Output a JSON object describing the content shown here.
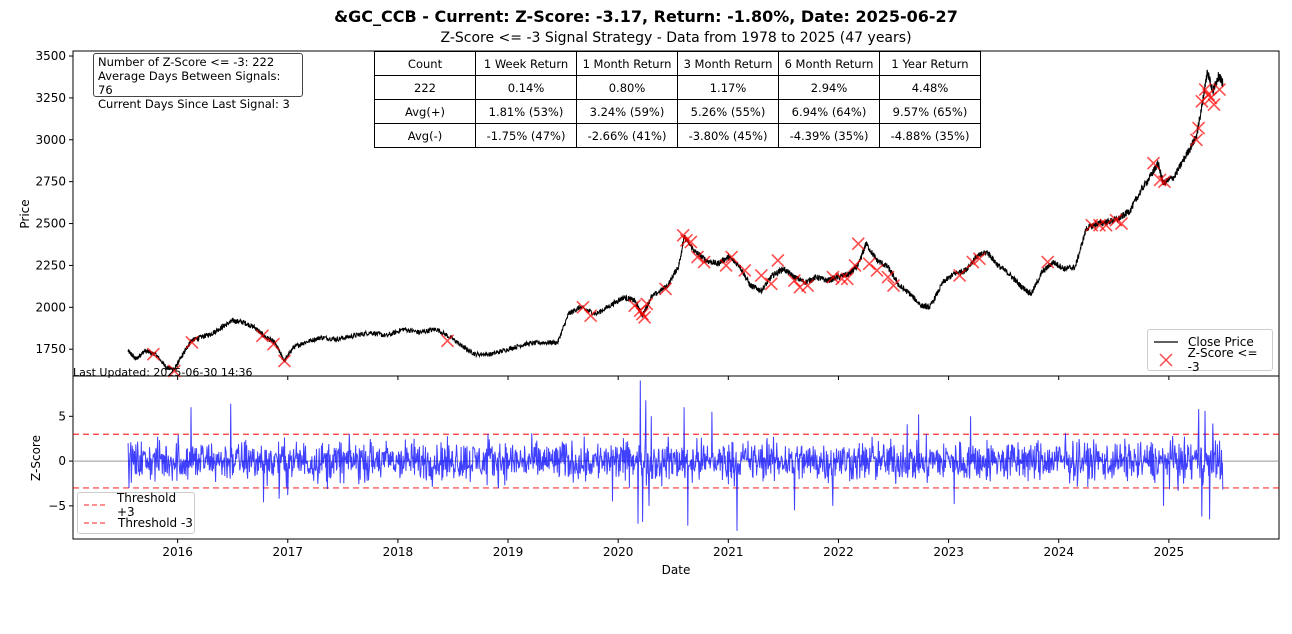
{
  "title": "&GC_CCB - Current: Z-Score: -3.17, Return: -1.80%, Date: 2025-06-27",
  "subtitle": "Z-Score <= -3 Signal Strategy - Data from 1978 to 2025 (47 years)",
  "stats_box": {
    "line1": "Number of Z-Score <= -3: 222",
    "line2": "Average Days Between Signals: 76",
    "line3": "Current Days Since Last Signal: 3"
  },
  "returns_table": {
    "header": [
      "Count",
      "1 Week Return",
      "1 Month Return",
      "3 Month Return",
      "6 Month Return",
      "1 Year Return"
    ],
    "rows": [
      [
        "222",
        "0.14%",
        "0.80%",
        "1.17%",
        "2.94%",
        "4.48%"
      ],
      [
        "Avg(+)",
        "1.81% (53%)",
        "3.24% (59%)",
        "5.26% (55%)",
        "6.94% (64%)",
        "9.57% (65%)"
      ],
      [
        "Avg(-)",
        "-1.75% (47%)",
        "-2.66% (41%)",
        "-3.80% (45%)",
        "-4.39% (35%)",
        "-4.88% (35%)"
      ]
    ]
  },
  "last_updated": "Last Updated: 2025-06-30 14:36",
  "colors": {
    "price": "#000000",
    "signal": "#ff0000",
    "zscore": "#0000ff",
    "threshold": "#ff0000"
  },
  "chart_data": [
    {
      "type": "line",
      "panel": "price",
      "ylabel": "Price",
      "xlim": [
        2015.05,
        2026.0
      ],
      "ylim": [
        1590,
        3530
      ],
      "yticks": [
        1750,
        2000,
        2250,
        2500,
        2750,
        3000,
        3250,
        3500
      ],
      "series": [
        {
          "name": "Close Price",
          "x": [
            2015.55,
            2015.62,
            2015.7,
            2015.8,
            2015.9,
            2015.97,
            2016.05,
            2016.12,
            2016.2,
            2016.3,
            2016.4,
            2016.5,
            2016.6,
            2016.7,
            2016.78,
            2016.88,
            2016.97,
            2017.05,
            2017.15,
            2017.3,
            2017.45,
            2017.6,
            2017.75,
            2017.9,
            2018.05,
            2018.2,
            2018.35,
            2018.5,
            2018.6,
            2018.7,
            2018.85,
            2019.0,
            2019.15,
            2019.3,
            2019.45,
            2019.55,
            2019.65,
            2019.8,
            2019.95,
            2020.05,
            2020.15,
            2020.22,
            2020.3,
            2020.45,
            2020.55,
            2020.6,
            2020.7,
            2020.8,
            2020.9,
            2021.0,
            2021.1,
            2021.2,
            2021.3,
            2021.4,
            2021.5,
            2021.6,
            2021.7,
            2021.8,
            2021.9,
            2022.0,
            2022.1,
            2022.18,
            2022.25,
            2022.35,
            2022.45,
            2022.55,
            2022.65,
            2022.75,
            2022.83,
            2022.95,
            2023.05,
            2023.15,
            2023.25,
            2023.35,
            2023.45,
            2023.55,
            2023.65,
            2023.75,
            2023.85,
            2023.95,
            2024.05,
            2024.15,
            2024.25,
            2024.35,
            2024.45,
            2024.55,
            2024.65,
            2024.75,
            2024.85,
            2024.9,
            2024.95,
            2025.05,
            2025.15,
            2025.25,
            2025.3,
            2025.35,
            2025.4,
            2025.45,
            2025.49
          ],
          "y": [
            1740,
            1690,
            1740,
            1720,
            1640,
            1630,
            1720,
            1800,
            1820,
            1840,
            1880,
            1920,
            1910,
            1880,
            1830,
            1790,
            1680,
            1760,
            1790,
            1820,
            1810,
            1830,
            1850,
            1830,
            1870,
            1850,
            1870,
            1810,
            1760,
            1720,
            1720,
            1750,
            1780,
            1790,
            1790,
            1960,
            2000,
            1960,
            2020,
            2060,
            2040,
            1950,
            2060,
            2130,
            2250,
            2420,
            2330,
            2280,
            2260,
            2300,
            2250,
            2130,
            2100,
            2190,
            2230,
            2180,
            2150,
            2180,
            2160,
            2180,
            2200,
            2250,
            2380,
            2280,
            2240,
            2130,
            2080,
            2010,
            2000,
            2150,
            2200,
            2220,
            2300,
            2330,
            2250,
            2200,
            2130,
            2080,
            2210,
            2270,
            2230,
            2240,
            2470,
            2500,
            2510,
            2530,
            2580,
            2700,
            2800,
            2860,
            2740,
            2780,
            2900,
            3020,
            3200,
            3410,
            3290,
            3380,
            3340
          ]
        }
      ],
      "signals": {
        "name": "Z-Score <= -3",
        "x": [
          2015.78,
          2015.97,
          2016.13,
          2016.77,
          2016.87,
          2016.97,
          2018.45,
          2019.68,
          2019.75,
          2020.15,
          2020.2,
          2020.22,
          2020.24,
          2020.26,
          2020.43,
          2020.59,
          2020.62,
          2020.66,
          2020.72,
          2020.78,
          2020.98,
          2021.03,
          2021.15,
          2021.3,
          2021.39,
          2021.45,
          2021.6,
          2021.65,
          2021.72,
          2021.95,
          2022.03,
          2022.08,
          2022.15,
          2022.18,
          2022.28,
          2022.35,
          2022.45,
          2022.5,
          2023.1,
          2023.22,
          2023.28,
          2023.9,
          2024.3,
          2024.37,
          2024.43,
          2024.52,
          2024.57,
          2024.86,
          2024.92,
          2024.96,
          2025.25,
          2025.27,
          2025.3,
          2025.33,
          2025.36,
          2025.38,
          2025.41,
          2025.46
        ],
        "y": [
          1720,
          1620,
          1790,
          1830,
          1780,
          1680,
          1800,
          2000,
          1950,
          2010,
          1980,
          1960,
          1940,
          2020,
          2110,
          2430,
          2400,
          2390,
          2300,
          2270,
          2250,
          2300,
          2220,
          2190,
          2140,
          2280,
          2160,
          2120,
          2130,
          2180,
          2170,
          2170,
          2250,
          2380,
          2260,
          2220,
          2180,
          2130,
          2190,
          2270,
          2290,
          2270,
          2490,
          2490,
          2490,
          2520,
          2500,
          2860,
          2760,
          2750,
          3000,
          3070,
          3230,
          3300,
          3270,
          3250,
          3210,
          3300
        ]
      }
    },
    {
      "type": "line",
      "panel": "zscore",
      "ylabel": "Z-Score",
      "xlabel": "Date",
      "xlim": [
        2015.05,
        2026.0
      ],
      "ylim": [
        -8.7,
        9.5
      ],
      "yticks": [
        -5,
        0,
        5
      ],
      "xticks": [
        "2016",
        "2017",
        "2018",
        "2019",
        "2020",
        "2021",
        "2022",
        "2023",
        "2024",
        "2025"
      ],
      "thresholds": [
        {
          "name": "Threshold +3",
          "value": 3
        },
        {
          "name": "Threshold -3",
          "value": -3
        }
      ],
      "zero_line": 0,
      "series_range": [
        2015.55,
        2025.49
      ],
      "spikes": {
        "x": [
          2015.56,
          2016.12,
          2016.48,
          2016.78,
          2016.92,
          2017.0,
          2019.95,
          2020.18,
          2020.2,
          2020.22,
          2020.25,
          2020.28,
          2020.3,
          2020.6,
          2020.63,
          2020.85,
          2021.08,
          2021.6,
          2021.95,
          2023.05,
          2023.2,
          2024.95,
          2025.27,
          2025.3,
          2025.33,
          2025.37,
          2025.4
        ],
        "y": [
          -3.0,
          6.0,
          6.4,
          -4.6,
          -4.2,
          -3.8,
          -4.5,
          -7.0,
          9.0,
          -6.8,
          6.8,
          -5.0,
          5.0,
          6.0,
          -7.2,
          5.5,
          -7.8,
          -5.5,
          -5.0,
          -4.8,
          5.0,
          -5.0,
          5.8,
          -6.2,
          5.6,
          -6.5,
          4.2
        ]
      },
      "last_value": -3.17
    }
  ]
}
